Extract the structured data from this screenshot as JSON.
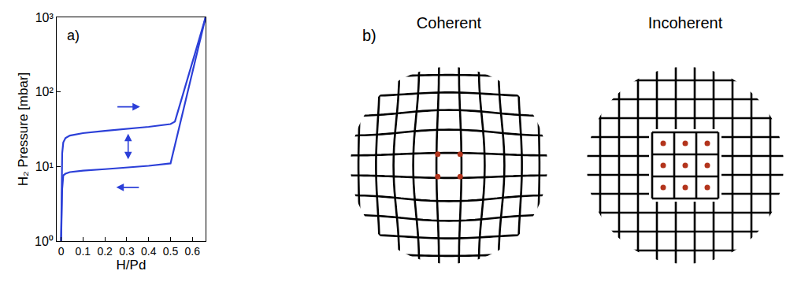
{
  "chart_data": {
    "type": "line",
    "panel_label": "a)",
    "x_label": "H/Pd",
    "y_label": "H₂ Pressure [mbar]",
    "log": "y",
    "grid": false,
    "line_style": "solid",
    "xlim": [
      -0.02,
      0.66
    ],
    "xticks": [
      0,
      0.1,
      0.2,
      0.3,
      0.4,
      0.5,
      0.6
    ],
    "ylim": [
      1,
      1000
    ],
    "yticks": [
      {
        "value": 1,
        "label": "10⁰"
      },
      {
        "value": 10,
        "label": "10¹"
      },
      {
        "value": 100,
        "label": "10²"
      },
      {
        "value": 1000,
        "label": "10³"
      }
    ],
    "series": [
      {
        "color": "#2b3fd8",
        "x": [
          0,
          0.002,
          0.005,
          0.01,
          0.02,
          0.04,
          0.1,
          0.2,
          0.3,
          0.4,
          0.5,
          0.52,
          0.56,
          0.6,
          0.64,
          0.66
        ],
        "values": [
          1,
          5,
          15,
          21,
          24,
          26,
          28,
          30,
          32,
          34,
          37,
          40,
          100,
          250,
          600,
          1000
        ]
      },
      {
        "color": "#2b3fd8",
        "x": [
          0.66,
          0.64,
          0.6,
          0.56,
          0.52,
          0.5,
          0.4,
          0.3,
          0.2,
          0.1,
          0.04,
          0.02,
          0.01,
          0.005,
          0.002,
          0
        ],
        "values": [
          1000,
          571,
          184,
          60,
          19.3,
          11,
          10.2,
          9.6,
          9.2,
          8.8,
          8.4,
          8,
          7.6,
          5,
          2.5,
          1
        ]
      }
    ]
  },
  "diagram": {
    "panel_label": "b)",
    "panels": [
      {
        "title": "Coherent"
      },
      {
        "title": "Incoherent"
      }
    ]
  }
}
